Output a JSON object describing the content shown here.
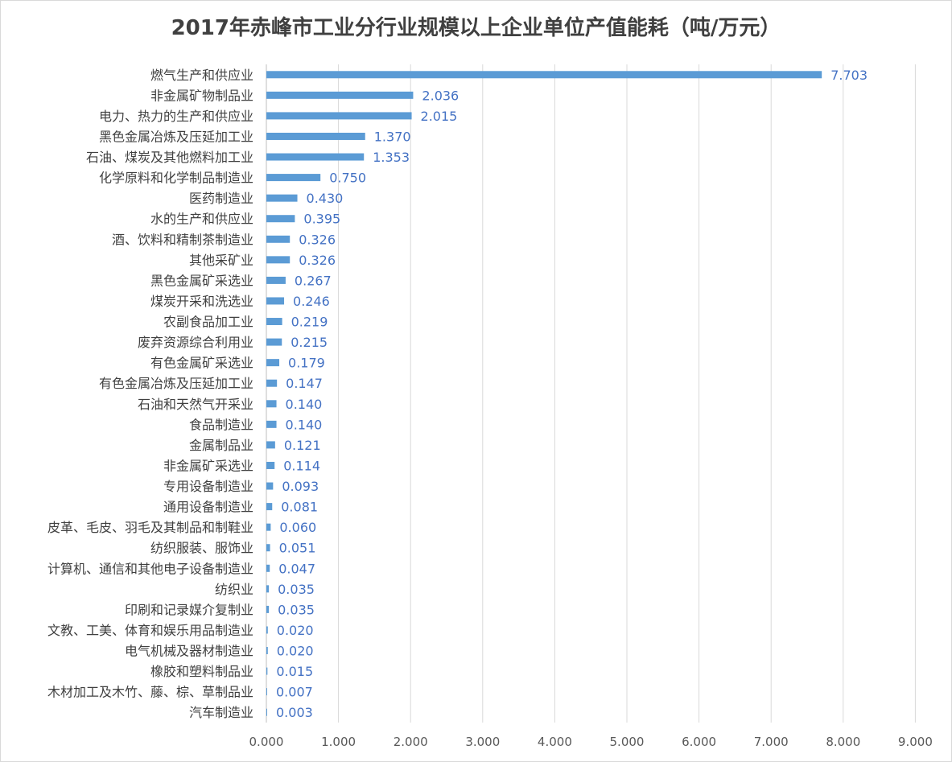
{
  "chart_data": {
    "type": "bar",
    "orientation": "horizontal",
    "title": "2017年赤峰市工业分行业规模以上企业单位产值能耗（吨/万元）",
    "xlabel": "",
    "ylabel": "",
    "xlim": [
      0,
      9
    ],
    "ticks": [
      "0.000",
      "1.000",
      "2.000",
      "3.000",
      "4.000",
      "5.000",
      "6.000",
      "7.000",
      "8.000",
      "9.000"
    ],
    "grid": true,
    "legend": "none",
    "bar_color": "#5b9bd5",
    "label_color": "#4472c4",
    "categories": [
      "燃气生产和供应业",
      "非金属矿物制品业",
      "电力、热力的生产和供应业",
      "黑色金属冶炼及压延加工业",
      "石油、煤炭及其他燃料加工业",
      "化学原料和化学制品制造业",
      "医药制造业",
      "水的生产和供应业",
      "酒、饮料和精制茶制造业",
      "其他采矿业",
      "黑色金属矿采选业",
      "煤炭开采和洗选业",
      "农副食品加工业",
      "废弃资源综合利用业",
      "有色金属矿采选业",
      "有色金属冶炼及压延加工业",
      "石油和天然气开采业",
      "食品制造业",
      "金属制品业",
      "非金属矿采选业",
      "专用设备制造业",
      "通用设备制造业",
      "皮革、毛皮、羽毛及其制品和制鞋业",
      "纺织服装、服饰业",
      "计算机、通信和其他电子设备制造业",
      "纺织业",
      "印刷和记录媒介复制业",
      "文教、工美、体育和娱乐用品制造业",
      "电气机械及器材制造业",
      "橡胶和塑料制品业",
      "木材加工及木竹、藤、棕、草制品业",
      "汽车制造业"
    ],
    "values": [
      7.703,
      2.036,
      2.015,
      1.37,
      1.353,
      0.75,
      0.43,
      0.395,
      0.326,
      0.326,
      0.267,
      0.246,
      0.219,
      0.215,
      0.179,
      0.147,
      0.14,
      0.14,
      0.121,
      0.114,
      0.093,
      0.081,
      0.06,
      0.051,
      0.047,
      0.035,
      0.035,
      0.02,
      0.02,
      0.015,
      0.007,
      0.003
    ],
    "value_labels": [
      "7.703",
      "2.036",
      "2.015",
      "1.370",
      "1.353",
      "0.750",
      "0.430",
      "0.395",
      "0.326",
      "0.326",
      "0.267",
      "0.246",
      "0.219",
      "0.215",
      "0.179",
      "0.147",
      "0.140",
      "0.140",
      "0.121",
      "0.114",
      "0.093",
      "0.081",
      "0.060",
      "0.051",
      "0.047",
      "0.035",
      "0.035",
      "0.020",
      "0.020",
      "0.015",
      "0.007",
      "0.003"
    ]
  }
}
